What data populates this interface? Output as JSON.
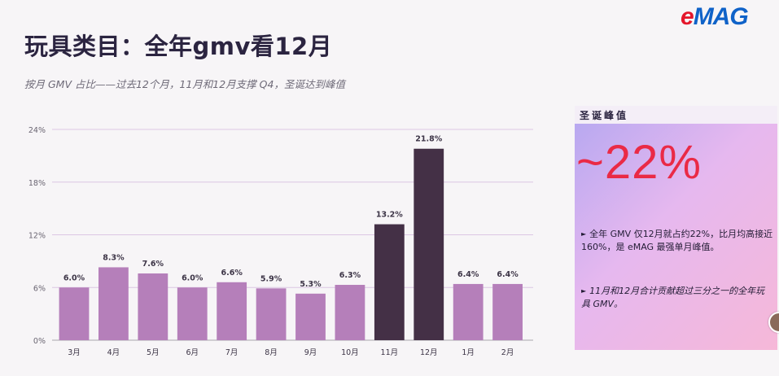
{
  "header": {
    "title": "玩具类目：全年gmv看12月",
    "subtitle": "按月 GMV 占比——过去12个月，11月和12月支撑 Q4，圣诞达到峰值"
  },
  "logo": {
    "e": "e",
    "rest": "MAG"
  },
  "chart_data": {
    "type": "bar",
    "categories": [
      "3月",
      "4月",
      "5月",
      "6月",
      "7月",
      "8月",
      "9月",
      "10月",
      "11月",
      "12月",
      "1月",
      "2月"
    ],
    "values": [
      6.0,
      8.3,
      7.6,
      6.0,
      6.6,
      5.9,
      5.3,
      6.3,
      13.2,
      21.8,
      6.4,
      6.4
    ],
    "value_labels": [
      "6.0%",
      "8.3%",
      "7.6%",
      "6.0%",
      "6.6%",
      "5.9%",
      "5.3%",
      "6.3%",
      "13.2%",
      "21.8%",
      "6.4%",
      "6.4%"
    ],
    "highlight": [
      false,
      false,
      false,
      false,
      false,
      false,
      false,
      false,
      true,
      true,
      false,
      false
    ],
    "ylim": [
      0,
      24
    ],
    "yticks": [
      0,
      6,
      12,
      18,
      24
    ],
    "ytick_labels": [
      "0%",
      "6%",
      "12%",
      "18%",
      "24%"
    ],
    "grid": true,
    "colors": {
      "bar": "#b57fba",
      "highlight": "#443046",
      "grid": "#dcc6e4",
      "axis": "#a9a6ae",
      "label": "#3c3446"
    }
  },
  "panel": {
    "title": "圣诞峰值",
    "big_value": "~22%",
    "bullets": [
      "全年 GMV 仅12月就占约22%，比月均高接近160%，是 eMAG 最强单月峰值。",
      "11月和12月合计贡献超过三分之一的全年玩具 GMV。"
    ],
    "bullet_mark": "►"
  }
}
